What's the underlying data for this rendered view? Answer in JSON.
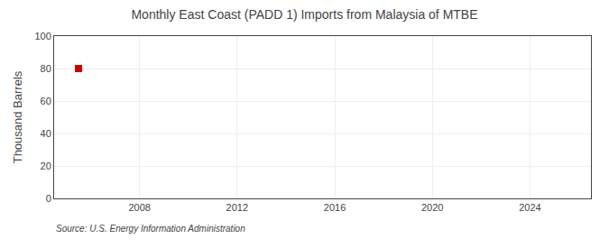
{
  "chart_data": {
    "type": "scatter",
    "title": "Monthly East Coast (PADD 1) Imports from Malaysia of MTBE",
    "ylabel": "Thousand Barrels",
    "source": "Source: U.S. Energy Information Administration",
    "x": [
      2005.5
    ],
    "values": [
      80
    ],
    "color": "#cc0000",
    "marker": "square",
    "xlim": [
      2004.5,
      2026.5
    ],
    "ylim": [
      0,
      100
    ],
    "xticks": [
      2008,
      2012,
      2016,
      2020,
      2024
    ],
    "yticks": [
      0,
      20,
      40,
      60,
      80,
      100
    ],
    "grid": true
  }
}
